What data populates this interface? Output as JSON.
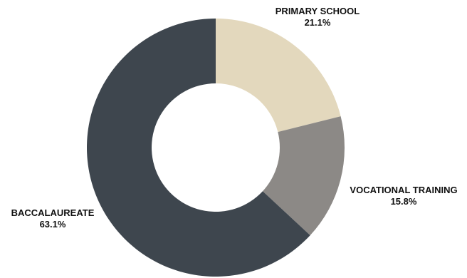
{
  "chart_data": {
    "type": "pie",
    "variant": "donut",
    "title": "",
    "categories": [
      "PRIMARY SCHOOL",
      "VOCATIONAL TRAINING",
      "BACCALAUREATE"
    ],
    "values": [
      21.1,
      15.8,
      63.1
    ],
    "value_labels": [
      "21.1%",
      "15.8%",
      "63.1%"
    ],
    "unit": "%",
    "colors": [
      "#e3d8bd",
      "#8c8986",
      "#3e464e"
    ],
    "legend": "none",
    "labels_outside": true
  }
}
